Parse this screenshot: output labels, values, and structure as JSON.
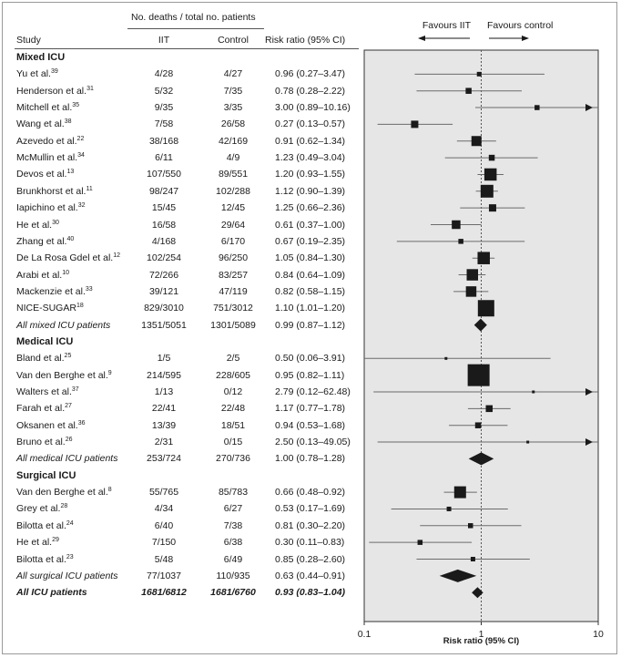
{
  "header": {
    "counts_group": "No. deaths / total no. patients",
    "col_study": "Study",
    "col_iit": "IIT",
    "col_control": "Control",
    "col_rr": "Risk ratio (95% CI)",
    "favours_left": "Favours IIT",
    "favours_right": "Favours control"
  },
  "chart_data": {
    "type": "forest",
    "xlabel": "Risk ratio (95% CI)",
    "x_scale": "log",
    "xlim": [
      0.1,
      10
    ],
    "x_ticks": [
      "0.1",
      "1",
      "10"
    ],
    "reference_line": 1,
    "rows": [
      {
        "kind": "section",
        "label": "Mixed ICU"
      },
      {
        "kind": "study",
        "study": "Yu et al.",
        "ref": "39",
        "iit": "4/28",
        "control": "4/27",
        "rr_text": "0.96 (0.27–3.47)",
        "rr": 0.96,
        "lo": 0.27,
        "hi": 3.47,
        "weight": 0.3
      },
      {
        "kind": "study",
        "study": "Henderson et al.",
        "ref": "31",
        "iit": "5/32",
        "control": "7/35",
        "rr_text": "0.78 (0.28–2.22)",
        "rr": 0.78,
        "lo": 0.28,
        "hi": 2.22,
        "weight": 0.45
      },
      {
        "kind": "study",
        "study": "Mitchell et al.",
        "ref": "35",
        "iit": "9/35",
        "control": "3/35",
        "rr_text": "3.00 (0.89–10.16)",
        "rr": 3.0,
        "lo": 0.89,
        "hi": 10.16,
        "weight": 0.35
      },
      {
        "kind": "study",
        "study": "Wang et al.",
        "ref": "38",
        "iit": "7/58",
        "control": "26/58",
        "rr_text": "0.27 (0.13–0.57)",
        "rr": 0.27,
        "lo": 0.13,
        "hi": 0.57,
        "weight": 0.6
      },
      {
        "kind": "study",
        "study": "Azevedo et al.",
        "ref": "22",
        "iit": "38/168",
        "control": "42/169",
        "rr_text": "0.91 (0.62–1.34)",
        "rr": 0.91,
        "lo": 0.62,
        "hi": 1.34,
        "weight": 0.9
      },
      {
        "kind": "study",
        "study": "McMullin et al.",
        "ref": "34",
        "iit": "6/11",
        "control": "4/9",
        "rr_text": "1.23 (0.49–3.04)",
        "rr": 1.23,
        "lo": 0.49,
        "hi": 3.04,
        "weight": 0.45
      },
      {
        "kind": "study",
        "study": "Devos et al.",
        "ref": "13",
        "iit": "107/550",
        "control": "89/551",
        "rr_text": "1.20 (0.93–1.55)",
        "rr": 1.2,
        "lo": 0.93,
        "hi": 1.55,
        "weight": 1.15
      },
      {
        "kind": "study",
        "study": "Brunkhorst et al.",
        "ref": "11",
        "iit": "98/247",
        "control": "102/288",
        "rr_text": "1.12 (0.90–1.39)",
        "rr": 1.12,
        "lo": 0.9,
        "hi": 1.39,
        "weight": 1.2
      },
      {
        "kind": "study",
        "study": "Iapichino et al.",
        "ref": "32",
        "iit": "15/45",
        "control": "12/45",
        "rr_text": "1.25 (0.66–2.36)",
        "rr": 1.25,
        "lo": 0.66,
        "hi": 2.36,
        "weight": 0.6
      },
      {
        "kind": "study",
        "study": "He et al.",
        "ref": "30",
        "iit": "16/58",
        "control": "29/64",
        "rr_text": "0.61 (0.37–1.00)",
        "rr": 0.61,
        "lo": 0.37,
        "hi": 1.0,
        "weight": 0.75
      },
      {
        "kind": "study",
        "study": "Zhang et al.",
        "ref": "40",
        "iit": "4/168",
        "control": "6/170",
        "rr_text": "0.67 (0.19–2.35)",
        "rr": 0.67,
        "lo": 0.19,
        "hi": 2.35,
        "weight": 0.35
      },
      {
        "kind": "study",
        "study": "De La Rosa Gdel et al.",
        "ref": "12",
        "iit": "102/254",
        "control": "96/250",
        "rr_text": "1.05 (0.84–1.30)",
        "rr": 1.05,
        "lo": 0.84,
        "hi": 1.3,
        "weight": 1.15
      },
      {
        "kind": "study",
        "study": "Arabi et al.",
        "ref": "10",
        "iit": "72/266",
        "control": "83/257",
        "rr_text": "0.84 (0.64–1.09)",
        "rr": 0.84,
        "lo": 0.64,
        "hi": 1.09,
        "weight": 1.05
      },
      {
        "kind": "study",
        "study": "Mackenzie et al.",
        "ref": "33",
        "iit": "39/121",
        "control": "47/119",
        "rr_text": "0.82 (0.58–1.15)",
        "rr": 0.82,
        "lo": 0.58,
        "hi": 1.15,
        "weight": 0.95
      },
      {
        "kind": "study",
        "study": "NICE-SUGAR",
        "ref": "18",
        "iit": "829/3010",
        "control": "751/3012",
        "rr_text": "1.10 (1.01–1.20)",
        "rr": 1.1,
        "lo": 1.01,
        "hi": 1.2,
        "weight": 1.6
      },
      {
        "kind": "pooled",
        "study": "All mixed ICU patients",
        "ref": "",
        "iit": "1351/5051",
        "control": "1301/5089",
        "rr_text": "0.99 (0.87–1.12)",
        "rr": 0.99,
        "lo": 0.87,
        "hi": 1.12
      },
      {
        "kind": "section",
        "label": "Medical ICU"
      },
      {
        "kind": "study",
        "study": "Bland et al.",
        "ref": "25",
        "iit": "1/5",
        "control": "2/5",
        "rr_text": "0.50 (0.06–3.91)",
        "rr": 0.5,
        "lo": 0.06,
        "hi": 3.91,
        "weight": 0.1
      },
      {
        "kind": "study",
        "study": "Van den Berghe et al.",
        "ref": "9",
        "iit": "214/595",
        "control": "228/605",
        "rr_text": "0.95 (0.82–1.11)",
        "rr": 0.95,
        "lo": 0.82,
        "hi": 1.11,
        "weight": 2.2
      },
      {
        "kind": "study",
        "study": "Walters et al.",
        "ref": "37",
        "iit": "1/13",
        "control": "0/12",
        "rr_text": "2.79 (0.12–62.48)",
        "rr": 2.79,
        "lo": 0.12,
        "hi": 62.48,
        "weight": 0.1
      },
      {
        "kind": "study",
        "study": "Farah et al.",
        "ref": "27",
        "iit": "22/41",
        "control": "22/48",
        "rr_text": "1.17 (0.77–1.78)",
        "rr": 1.17,
        "lo": 0.77,
        "hi": 1.78,
        "weight": 0.55
      },
      {
        "kind": "study",
        "study": "Oksanen et al.",
        "ref": "36",
        "iit": "13/39",
        "control": "18/51",
        "rr_text": "0.94 (0.53–1.68)",
        "rr": 0.94,
        "lo": 0.53,
        "hi": 1.68,
        "weight": 0.45
      },
      {
        "kind": "study",
        "study": "Bruno et al.",
        "ref": "26",
        "iit": "2/31",
        "control": "0/15",
        "rr_text": "2.50 (0.13–49.05)",
        "rr": 2.5,
        "lo": 0.13,
        "hi": 49.05,
        "weight": 0.1
      },
      {
        "kind": "pooled",
        "study": "All medical ICU patients",
        "ref": "",
        "iit": "253/724",
        "control": "270/736",
        "rr_text": "1.00 (0.78–1.28)",
        "rr": 1.0,
        "lo": 0.78,
        "hi": 1.28
      },
      {
        "kind": "section",
        "label": "Surgical ICU"
      },
      {
        "kind": "study",
        "study": "Van den Berghe et al.",
        "ref": "8",
        "iit": "55/765",
        "control": "85/783",
        "rr_text": "0.66 (0.48–0.92)",
        "rr": 0.66,
        "lo": 0.48,
        "hi": 0.92,
        "weight": 1.1
      },
      {
        "kind": "study",
        "study": "Grey et al.",
        "ref": "28",
        "iit": "4/34",
        "control": "6/27",
        "rr_text": "0.53 (0.17–1.69)",
        "rr": 0.53,
        "lo": 0.17,
        "hi": 1.69,
        "weight": 0.3
      },
      {
        "kind": "study",
        "study": "Bilotta et al.",
        "ref": "24",
        "iit": "6/40",
        "control": "7/38",
        "rr_text": "0.81 (0.30–2.20)",
        "rr": 0.81,
        "lo": 0.3,
        "hi": 2.2,
        "weight": 0.35
      },
      {
        "kind": "study",
        "study": "He et al.",
        "ref": "29",
        "iit": "7/150",
        "control": "6/38",
        "rr_text": "0.30 (0.11–0.83)",
        "rr": 0.3,
        "lo": 0.11,
        "hi": 0.83,
        "weight": 0.35
      },
      {
        "kind": "study",
        "study": "Bilotta et al.",
        "ref": "23",
        "iit": "5/48",
        "control": "6/49",
        "rr_text": "0.85 (0.28–2.60)",
        "rr": 0.85,
        "lo": 0.28,
        "hi": 2.6,
        "weight": 0.3
      },
      {
        "kind": "pooled",
        "study": "All surgical ICU patients",
        "ref": "",
        "iit": "77/1037",
        "control": "110/935",
        "rr_text": "0.63 (0.44–0.91)",
        "rr": 0.63,
        "lo": 0.44,
        "hi": 0.91
      },
      {
        "kind": "overall",
        "study": "All ICU patients",
        "ref": "",
        "iit": "1681/6812",
        "control": "1681/6760",
        "rr_text": "0.93 (0.83–1.04)",
        "rr": 0.93,
        "lo": 0.83,
        "hi": 1.04
      }
    ]
  },
  "colors": {
    "plot_bg": "#e6e6e6",
    "mark": "#1a1a1a",
    "ci_line": "#6b6b6b",
    "axis": "#333333",
    "ref_line": "#555555"
  }
}
